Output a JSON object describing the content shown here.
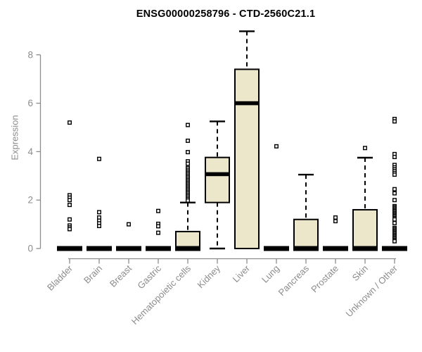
{
  "chart_data": {
    "type": "boxplot",
    "title": "ENSG00000258796 - CTD-2560C21.1",
    "ylabel": "Expression",
    "xlabel": "",
    "ylim": [
      0,
      9.2
    ],
    "yticks": [
      0,
      2,
      4,
      6,
      8
    ],
    "grid": false,
    "legend": "none",
    "categories": [
      "Bladder",
      "Brain",
      "Breast",
      "Gastric",
      "Hematopoietic cells",
      "Kidney",
      "Liver",
      "Lung",
      "Pancreas",
      "Prostate",
      "Skin",
      "Unknown / Other"
    ],
    "boxes": [
      {
        "category": "Bladder",
        "q1": 0,
        "median": 0,
        "q3": 0,
        "whisker_low": 0,
        "whisker_high": 0,
        "outliers": [
          5.2,
          2.2,
          2.1,
          2.0,
          1.8,
          1.2,
          0.95,
          0.87,
          0.8
        ]
      },
      {
        "category": "Brain",
        "q1": 0,
        "median": 0,
        "q3": 0,
        "whisker_low": 0,
        "whisker_high": 0,
        "outliers": [
          3.7,
          1.5,
          1.28,
          1.15,
          1.04,
          0.93
        ]
      },
      {
        "category": "Breast",
        "q1": 0,
        "median": 0,
        "q3": 0,
        "whisker_low": 0,
        "whisker_high": 0,
        "outliers": [
          1.0
        ]
      },
      {
        "category": "Gastric",
        "q1": 0,
        "median": 0,
        "q3": 0,
        "whisker_low": 0,
        "whisker_high": 0,
        "outliers": [
          1.55,
          1.02,
          0.92,
          0.65
        ]
      },
      {
        "category": "Hematopoietic cells",
        "q1": 0,
        "median": 0,
        "q3": 0.7,
        "whisker_low": 0,
        "whisker_high": 1.9,
        "outliers": [
          5.1,
          4.45,
          3.98,
          3.6,
          3.5,
          3.32,
          3.25,
          3.18,
          3.12,
          3.06,
          3.0,
          2.94,
          2.88,
          2.82,
          2.76,
          2.7,
          2.64,
          2.58,
          2.52,
          2.46,
          2.4,
          2.34,
          2.28,
          2.22,
          2.16,
          2.1,
          2.04,
          1.98
        ]
      },
      {
        "category": "Kidney",
        "q1": 1.9,
        "median": 3.07,
        "q3": 3.76,
        "whisker_low": 0,
        "whisker_high": 5.25,
        "outliers": []
      },
      {
        "category": "Liver",
        "q1": 0,
        "median": 6.0,
        "q3": 7.4,
        "whisker_low": 0,
        "whisker_high": 8.97,
        "outliers": []
      },
      {
        "category": "Lung",
        "q1": 0,
        "median": 0,
        "q3": 0,
        "whisker_low": 0,
        "whisker_high": 0,
        "outliers": [
          4.22
        ]
      },
      {
        "category": "Pancreas",
        "q1": 0,
        "median": 0,
        "q3": 1.2,
        "whisker_low": 0,
        "whisker_high": 3.05,
        "outliers": []
      },
      {
        "category": "Prostate",
        "q1": 0,
        "median": 0,
        "q3": 0,
        "whisker_low": 0,
        "whisker_high": 0,
        "outliers": [
          1.28,
          1.13
        ]
      },
      {
        "category": "Skin",
        "q1": 0,
        "median": 0,
        "q3": 1.6,
        "whisker_low": 0,
        "whisker_high": 3.75,
        "outliers": [
          4.15
        ]
      },
      {
        "category": "Unknown / Other",
        "q1": 0,
        "median": 0,
        "q3": 0,
        "whisker_low": 0,
        "whisker_high": 0,
        "outliers": [
          5.35,
          5.25,
          3.9,
          3.78,
          3.45,
          3.35,
          3.27,
          3.2,
          3.12,
          3.05,
          2.45,
          2.28,
          2.0,
          1.75,
          1.7,
          1.65,
          1.6,
          1.55,
          1.5,
          1.45,
          1.4,
          1.35,
          1.3,
          1.25,
          1.2,
          1.05,
          0.85,
          0.8,
          0.75,
          0.7,
          0.65,
          0.6,
          0.55,
          0.5,
          0.45,
          0.4,
          0.35,
          0.3
        ]
      }
    ],
    "colors": {
      "box_fill": "#ECE7CB",
      "box_border": "#000000",
      "median": "#000000",
      "whisker": "#000000",
      "outlier": "#000000",
      "axis": "#8c8c8c",
      "tick_label": "#8c8c8c",
      "title": "#000000",
      "background": "#ffffff"
    }
  }
}
